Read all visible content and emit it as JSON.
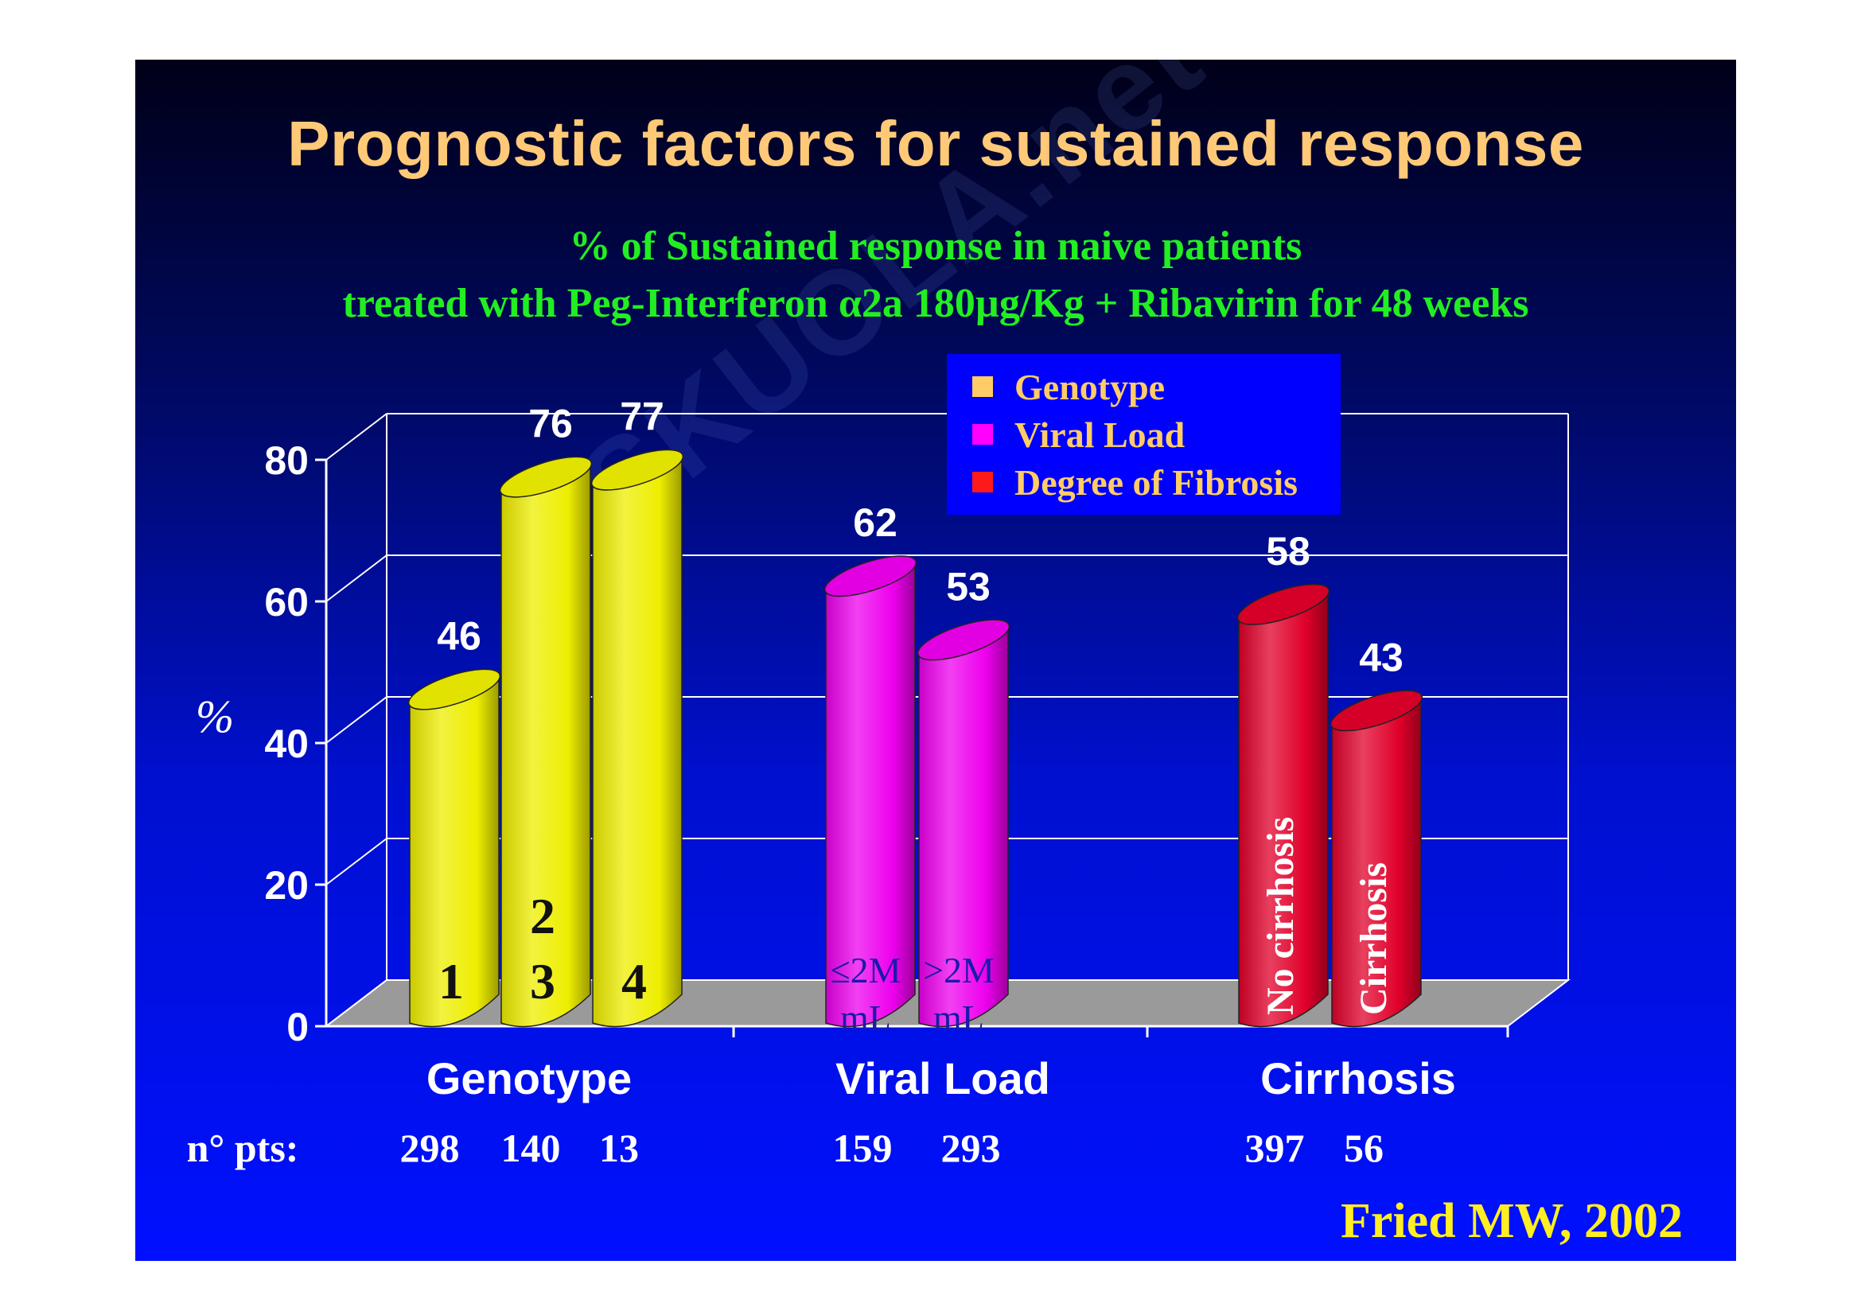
{
  "slide": {
    "title": "Prognostic factors for sustained response",
    "subtitle_line1": "% of Sustained response in naive patients",
    "subtitle_line2": "treated with Peg-Interferon α2a 180µg/Kg + Ribavirin for 48 weeks",
    "citation": "Fried MW, 2002",
    "watermark": "SKUOLA.net"
  },
  "chart_data": {
    "type": "bar",
    "title": "% of Sustained response in naive patients treated with Peg-Interferon α2a 180µg/Kg + Ribavirin for 48 weeks",
    "ylabel": "%",
    "xlabel": "",
    "ylim": [
      0,
      80
    ],
    "yticks": [
      0,
      20,
      40,
      60,
      80
    ],
    "grid": true,
    "legend_position": "top-right",
    "legend": [
      {
        "name": "Genotype",
        "color": "#ffcc66"
      },
      {
        "name": "Viral Load",
        "color": "#ff00ff"
      },
      {
        "name": "Degree of Fibrosis",
        "color": "#ff1a1a"
      }
    ],
    "groups": [
      {
        "name": "Genotype",
        "series": "Genotype",
        "bar_color": "#eeee00",
        "bar_label_color": "#111111",
        "bars": [
          {
            "label_lines": [
              "1"
            ],
            "value": 46
          },
          {
            "label_lines": [
              "2",
              "3"
            ],
            "value": 76
          },
          {
            "label_lines": [
              "4"
            ],
            "value": 77
          }
        ],
        "n_pts": [
          "298",
          "140",
          "13"
        ]
      },
      {
        "name": "Viral Load",
        "series": "Viral Load",
        "bar_color": "#ee00ee",
        "bar_label_color": "#1a1aaa",
        "bars": [
          {
            "label_lines": [
              "≤2M",
              "mL"
            ],
            "value": 62
          },
          {
            "label_lines": [
              ">2M",
              "mL"
            ],
            "value": 53
          }
        ],
        "n_pts": [
          "159",
          "293"
        ]
      },
      {
        "name": "Cirrhosis",
        "series": "Degree of Fibrosis",
        "bar_color": "#e0002a",
        "bar_label_color": "#ffffff",
        "bars": [
          {
            "label_lines": [
              "No cirrhosis"
            ],
            "value": 58
          },
          {
            "label_lines": [
              "Cirrhosis"
            ],
            "value": 43
          }
        ],
        "n_pts": [
          "397",
          "56"
        ]
      }
    ],
    "n_pts_label": "n° pts:"
  }
}
